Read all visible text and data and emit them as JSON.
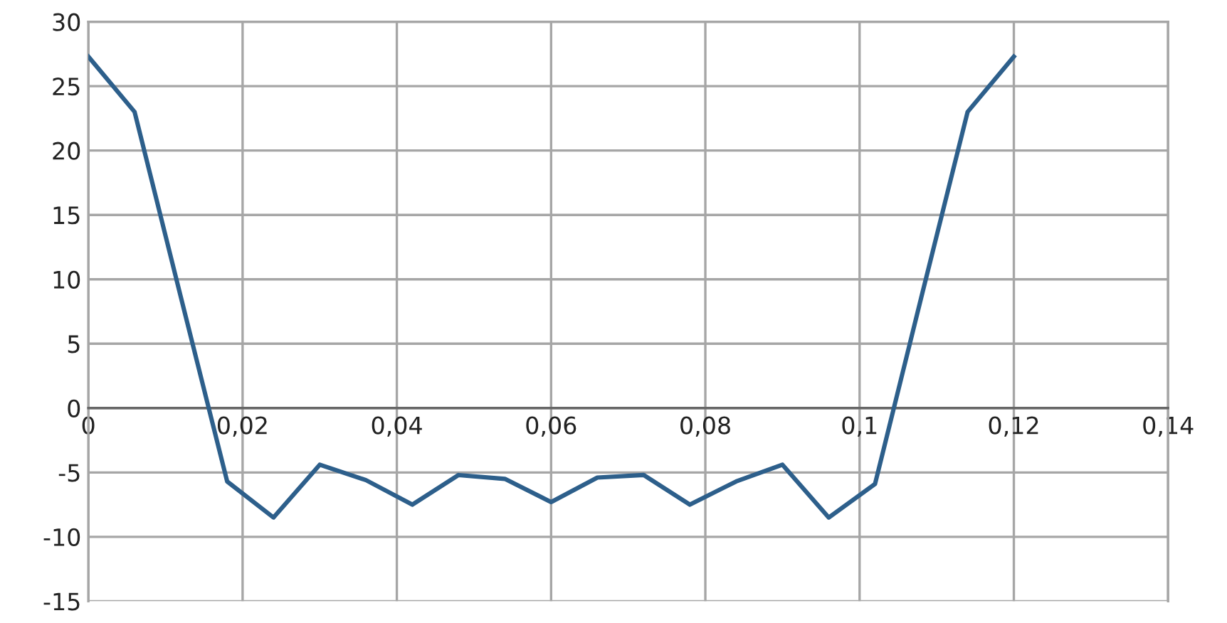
{
  "chart_data": {
    "type": "line",
    "x": [
      0,
      0.006,
      0.012,
      0.018,
      0.024,
      0.03,
      0.036,
      0.042,
      0.048,
      0.054,
      0.06,
      0.066,
      0.072,
      0.078,
      0.084,
      0.09,
      0.096,
      0.102,
      0.108,
      0.114,
      0.12
    ],
    "series": [
      {
        "color": "#2d5f8b",
        "values": [
          27.3,
          23.0,
          8.6,
          -5.7,
          -8.5,
          -4.4,
          -5.6,
          -7.5,
          -5.2,
          -5.5,
          -7.3,
          -5.4,
          -5.2,
          -7.5,
          -5.7,
          -4.4,
          -8.5,
          -5.9,
          8.6,
          23.0,
          27.3
        ]
      }
    ],
    "xlim": [
      0,
      0.14
    ],
    "xticks": [
      0,
      {
        "value": 0.02,
        "label": "0,02"
      },
      {
        "value": 0.04,
        "label": "0,04"
      },
      {
        "value": 0.06,
        "label": "0,06"
      },
      {
        "value": 0.08,
        "label": "0,08"
      },
      {
        "value": 0.1,
        "label": "0,1"
      },
      {
        "value": 0.12,
        "label": "0,12"
      },
      {
        "value": 0.14,
        "label": "0,14"
      }
    ],
    "ylim": [
      -15,
      30
    ],
    "yticks": [
      -15,
      -10,
      -5,
      0,
      5,
      10,
      15,
      20,
      25,
      30
    ],
    "grid": true,
    "marker": "none",
    "line_style": "solid"
  }
}
